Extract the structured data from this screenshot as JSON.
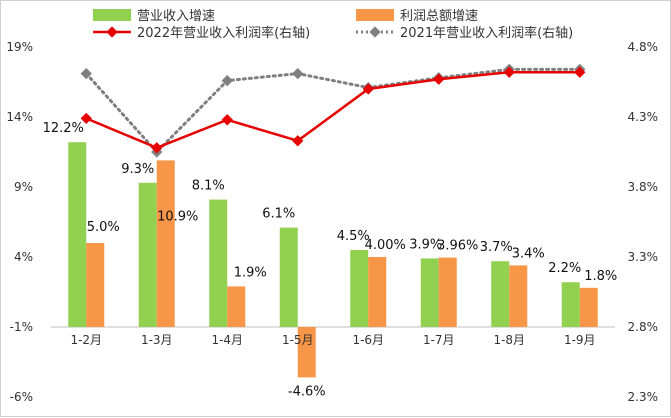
{
  "chart_data": {
    "type": "bar",
    "categories": [
      "1-2月",
      "1-3月",
      "1-4月",
      "1-5月",
      "1-6月",
      "1-7月",
      "1-8月",
      "1-9月"
    ],
    "series": [
      {
        "name": "营业收入增速",
        "kind": "bar",
        "axis": "left",
        "values": [
          12.2,
          9.3,
          8.1,
          6.1,
          4.5,
          3.9,
          3.7,
          2.2
        ],
        "labels": [
          "12.2%",
          "9.3%",
          "8.1%",
          "6.1%",
          "4.5%",
          "3.9%",
          "3.7%",
          "2.2%"
        ]
      },
      {
        "name": "利润总额增速",
        "kind": "bar",
        "axis": "left",
        "values": [
          5.0,
          10.9,
          1.9,
          -4.6,
          4.0,
          3.96,
          3.4,
          1.8
        ],
        "labels": [
          "5.0%",
          "10.9%",
          "1.9%",
          "-4.6%",
          "4.00%",
          "3.96%",
          "3.4%",
          "1.8%"
        ]
      },
      {
        "name": "2022年营业收入利润率(右轴)",
        "kind": "line",
        "axis": "right",
        "values": [
          4.29,
          4.08,
          4.28,
          4.13,
          4.5,
          4.57,
          4.62,
          4.62
        ]
      },
      {
        "name": "2021年营业收入利润率(右轴)",
        "kind": "dotted-line",
        "axis": "right",
        "values": [
          4.61,
          4.05,
          4.56,
          4.61,
          4.51,
          4.58,
          4.64,
          4.64
        ]
      }
    ],
    "ylim_left": [
      -6,
      19
    ],
    "yticks_left": [
      "19%",
      "14%",
      "9%",
      "4%",
      "-1%",
      "-6%"
    ],
    "ylim_right": [
      2.3,
      4.8
    ],
    "yticks_right": [
      "4.8%",
      "4.3%",
      "3.8%",
      "3.3%",
      "2.8%",
      "2.3%"
    ],
    "colors": {
      "bar1": "#92d050",
      "bar2": "#f79646",
      "line2022": "#e60000",
      "line2021": "#7f7f7f"
    },
    "grid": false,
    "legend_position": "top"
  }
}
